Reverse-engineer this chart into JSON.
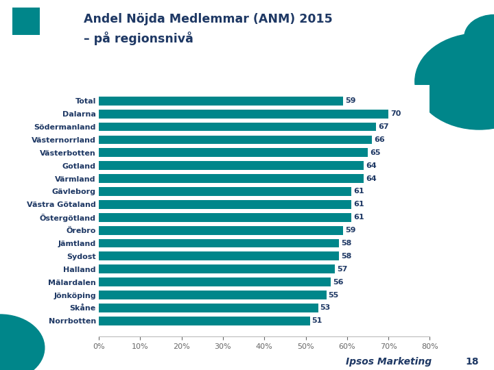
{
  "title_line1": "Andel Nöjda Medlemmar (ANM) 2015",
  "title_line2": "– på regionsnivå",
  "categories": [
    "Total",
    "Dalarna",
    "Södermanland",
    "Västernorrland",
    "Västerbotten",
    "Gotland",
    "Värmland",
    "Gävleborg",
    "Västra Götaland",
    "Östergötland",
    "Örebro",
    "Jämtland",
    "Sydost",
    "Halland",
    "Mälardalen",
    "Jönköping",
    "Skåne",
    "Norrbotten"
  ],
  "values": [
    59,
    70,
    67,
    66,
    65,
    64,
    64,
    61,
    61,
    61,
    59,
    58,
    58,
    57,
    56,
    55,
    53,
    51
  ],
  "bar_color": "#00868a",
  "value_color": "#1e3864",
  "label_color": "#1e3864",
  "title_color": "#1e3864",
  "bg_color": "#ffffff",
  "footer_text": "Ipsos Marketing",
  "footer_number": "18",
  "xlim": [
    0,
    80
  ],
  "xtick_values": [
    0,
    10,
    20,
    30,
    40,
    50,
    60,
    70,
    80
  ]
}
